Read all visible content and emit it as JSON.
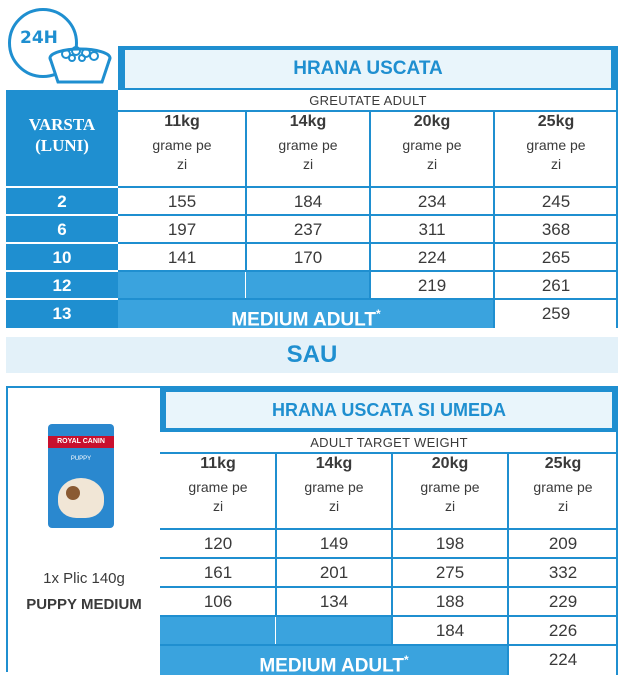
{
  "top": {
    "badge": "24H",
    "header": "HRANA USCATA",
    "age_title_1": "VARSTA",
    "age_title_2": "(LUNI)",
    "sub_header": "GREUTATE ADULT",
    "columns": [
      "11kg",
      "14kg",
      "20kg",
      "25kg"
    ],
    "unit_1": "grame pe",
    "unit_2": "zi",
    "rows": [
      {
        "age": "2",
        "values": [
          "155",
          "184",
          "234",
          "245"
        ]
      },
      {
        "age": "6",
        "values": [
          "197",
          "237",
          "311",
          "368"
        ]
      },
      {
        "age": "10",
        "values": [
          "141",
          "170",
          "224",
          "265"
        ]
      },
      {
        "age": "12",
        "values": [
          "",
          "",
          "219",
          "261"
        ]
      },
      {
        "age": "13",
        "values": [
          "",
          "",
          "",
          "259"
        ]
      }
    ],
    "medium_label": "MEDIUM ADULT",
    "medium_mark": "*"
  },
  "sau": "SAU",
  "bottom": {
    "header": "HRANA USCATA SI UMEDA",
    "sub_header": "ADULT TARGET WEIGHT",
    "columns": [
      "11kg",
      "14kg",
      "20kg",
      "25kg"
    ],
    "unit_1": "grame pe",
    "unit_2": "zi",
    "rows": [
      {
        "values": [
          "120",
          "149",
          "198",
          "209"
        ]
      },
      {
        "values": [
          "161",
          "201",
          "275",
          "332"
        ]
      },
      {
        "values": [
          "106",
          "134",
          "188",
          "229"
        ]
      },
      {
        "values": [
          "",
          "",
          "184",
          "226"
        ]
      },
      {
        "values": [
          "",
          "",
          "",
          "224"
        ]
      }
    ],
    "pouch_line_1": "1x Plic 140g",
    "pouch_line_2": "PUPPY MEDIUM",
    "pouch_brand": "ROYAL CANIN",
    "pouch_variant": "PUPPY",
    "medium_label": "MEDIUM ADULT",
    "medium_mark": "*"
  },
  "colors": {
    "accent": "#1f8fd0",
    "fill": "#3aa3de",
    "pale": "#e9f5fb"
  }
}
